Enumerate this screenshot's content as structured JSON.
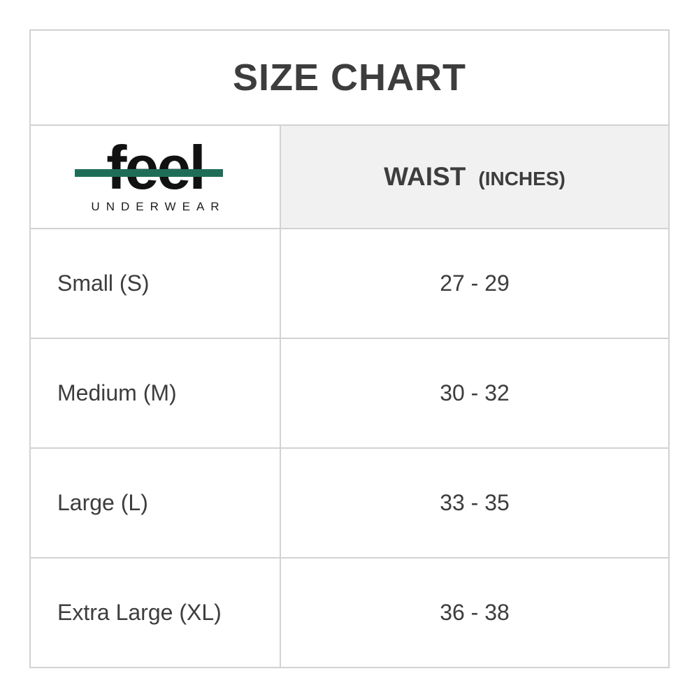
{
  "title": "SIZE CHART",
  "logo": {
    "brand": "feel",
    "subtext": "UNDERWEAR"
  },
  "header": {
    "waist_label": "WAIST",
    "waist_unit": "(INCHES)"
  },
  "rows": [
    {
      "size": "Small (S)",
      "waist": "27 - 29"
    },
    {
      "size": "Medium (M)",
      "waist": "30 - 32"
    },
    {
      "size": "Large (L)",
      "waist": "33 - 35"
    },
    {
      "size": "Extra Large (XL)",
      "waist": "36 - 38"
    }
  ],
  "colors": {
    "text": "#3d3d3d",
    "border": "#d2d2d2",
    "header_bg": "#f1f1f1",
    "accent_green": "#1e6e57",
    "logo_ink": "#111111"
  }
}
